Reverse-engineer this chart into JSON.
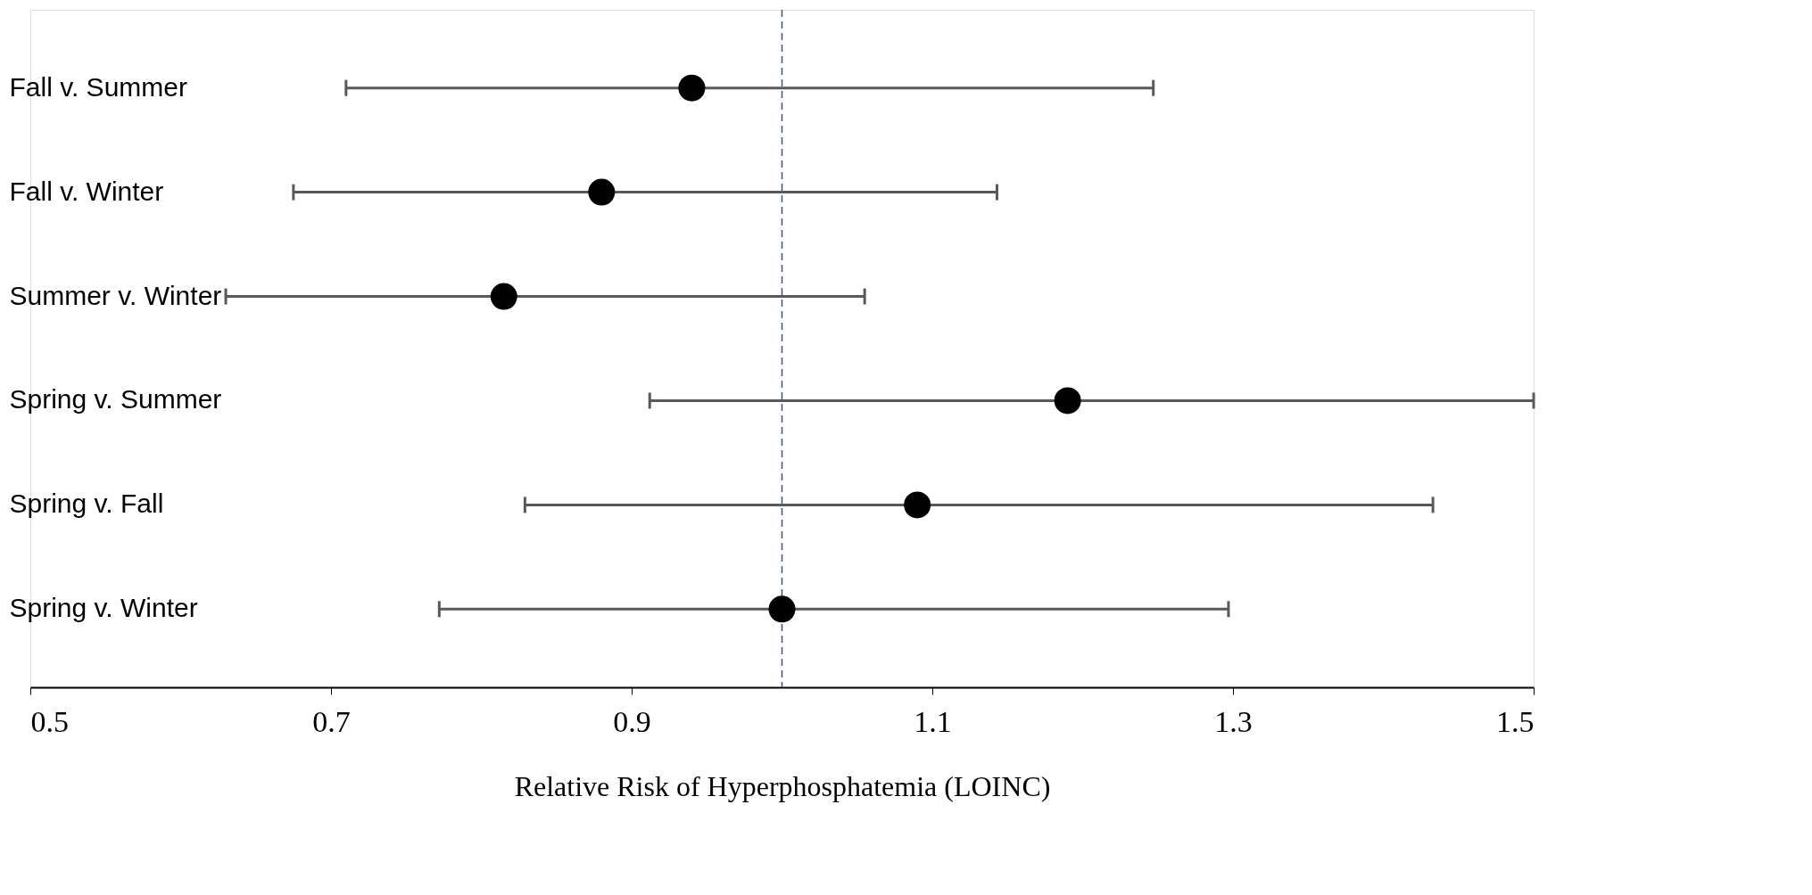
{
  "chart_data": {
    "type": "scatter",
    "orientation": "horizontal",
    "xlabel": "Relative Risk of Hyperphosphatemia (LOINC)",
    "categories": [
      "Fall v. Summer",
      "Fall v. Winter",
      "Summer v. Winter",
      "Spring v. Summer",
      "Spring v. Fall",
      "Spring v. Winter"
    ],
    "values": [
      0.94,
      0.88,
      0.815,
      1.19,
      1.09,
      1.0
    ],
    "errors": [
      [
        0.71,
        1.247
      ],
      [
        0.675,
        1.143
      ],
      [
        0.63,
        1.055
      ],
      [
        0.912,
        1.5
      ],
      [
        0.829,
        1.433
      ],
      [
        0.772,
        1.297
      ]
    ],
    "color": "#000000",
    "marker": "circle",
    "xlim": [
      0.5,
      1.5
    ],
    "xticks": [
      0.5,
      0.7,
      0.9,
      1.1,
      1.3,
      1.5
    ],
    "grid": false,
    "ref_lines": [
      {
        "axis": "x",
        "value": 1.0,
        "color": "#44546a",
        "line_style": "dashed"
      }
    ]
  }
}
